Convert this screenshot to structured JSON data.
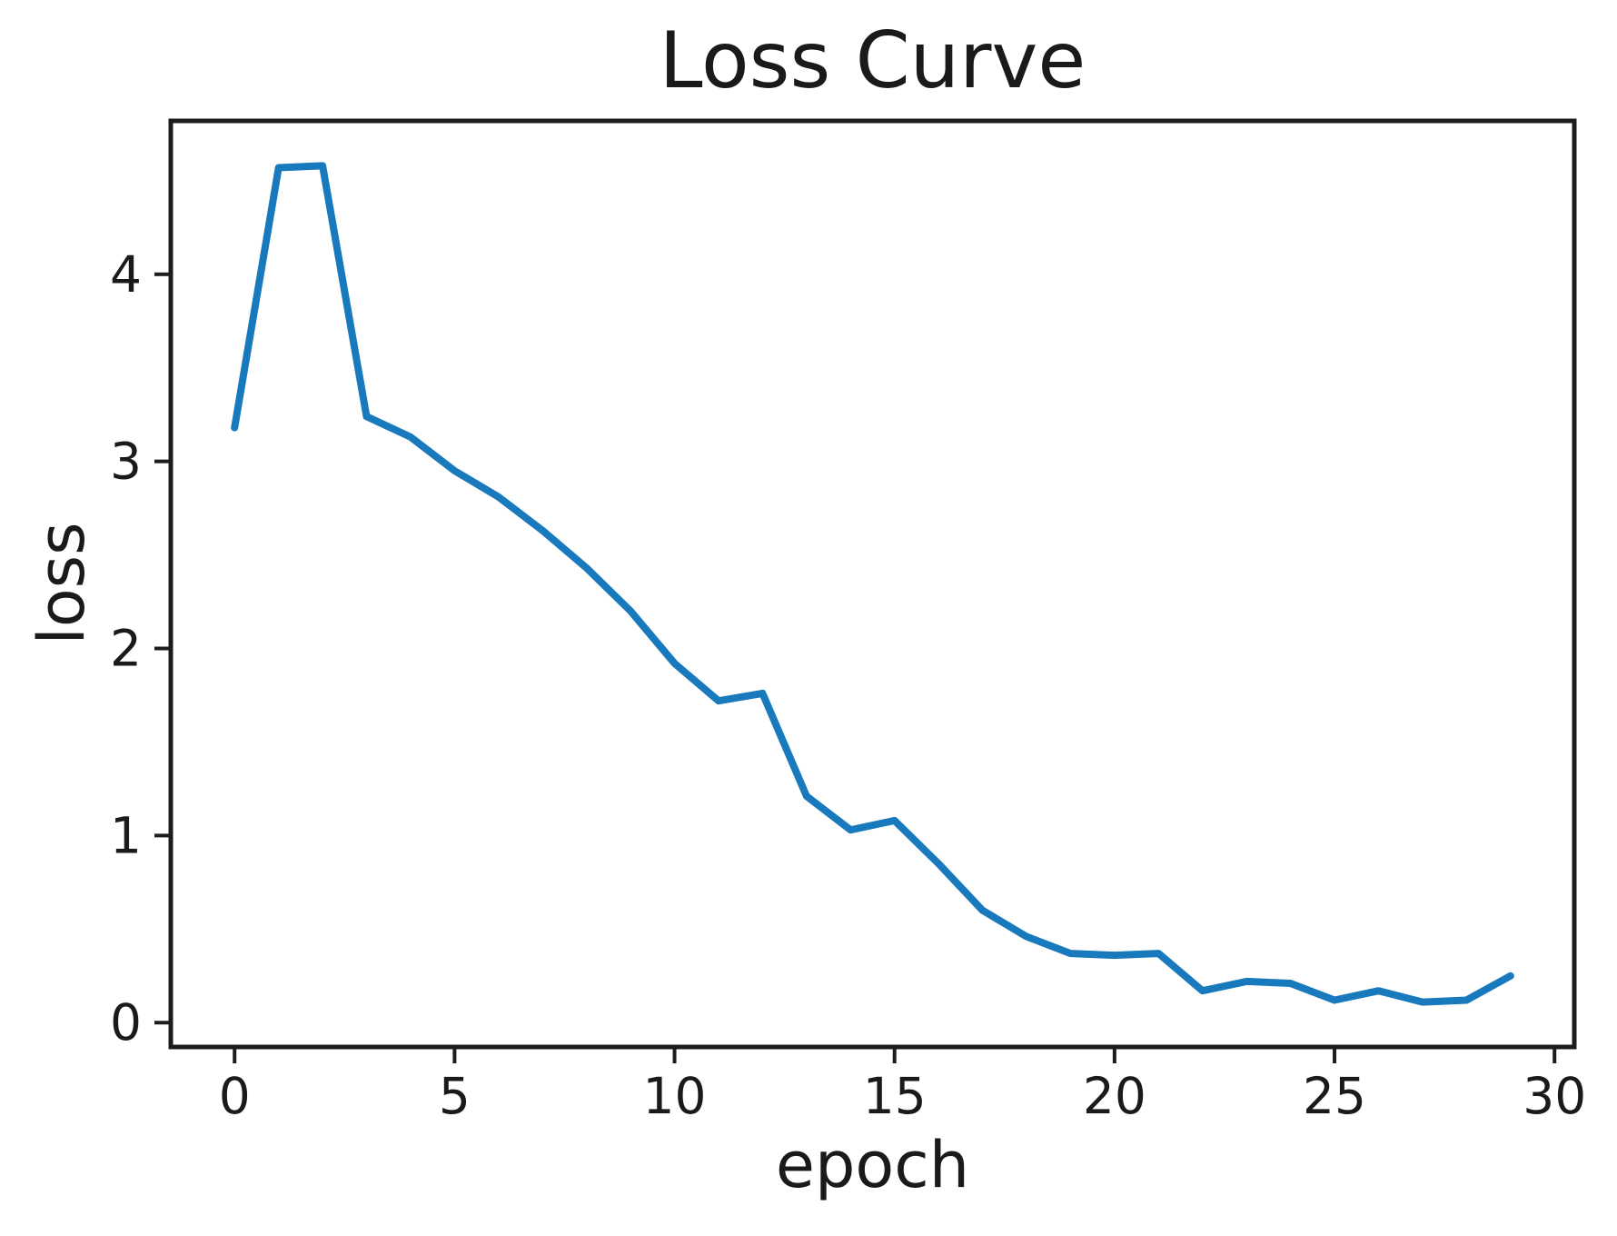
{
  "chart_data": {
    "type": "line",
    "title": "Loss Curve",
    "xlabel": "epoch",
    "ylabel": "loss",
    "x": [
      0,
      1,
      2,
      3,
      4,
      5,
      6,
      7,
      8,
      9,
      10,
      11,
      12,
      13,
      14,
      15,
      16,
      17,
      18,
      19,
      20,
      21,
      22,
      23,
      24,
      25,
      26,
      27,
      28,
      29
    ],
    "series": [
      {
        "name": "loss",
        "values": [
          3.18,
          4.57,
          4.58,
          3.24,
          3.13,
          2.95,
          2.81,
          2.63,
          2.43,
          2.2,
          1.92,
          1.72,
          1.76,
          1.21,
          1.03,
          1.08,
          0.85,
          0.6,
          0.46,
          0.37,
          0.36,
          0.37,
          0.17,
          0.22,
          0.21,
          0.12,
          0.17,
          0.11,
          0.12,
          0.25
        ]
      }
    ],
    "x_ticks": [
      0,
      5,
      10,
      15,
      20,
      25,
      30
    ],
    "y_ticks": [
      0,
      1,
      2,
      3,
      4
    ],
    "xlim": [
      -1.45,
      30.45
    ],
    "ylim": [
      -0.13,
      4.82
    ],
    "grid": false,
    "legend": "none",
    "line_color": "#1879bc",
    "axis_color": "#1c1c1c",
    "background": "#ffffff"
  }
}
